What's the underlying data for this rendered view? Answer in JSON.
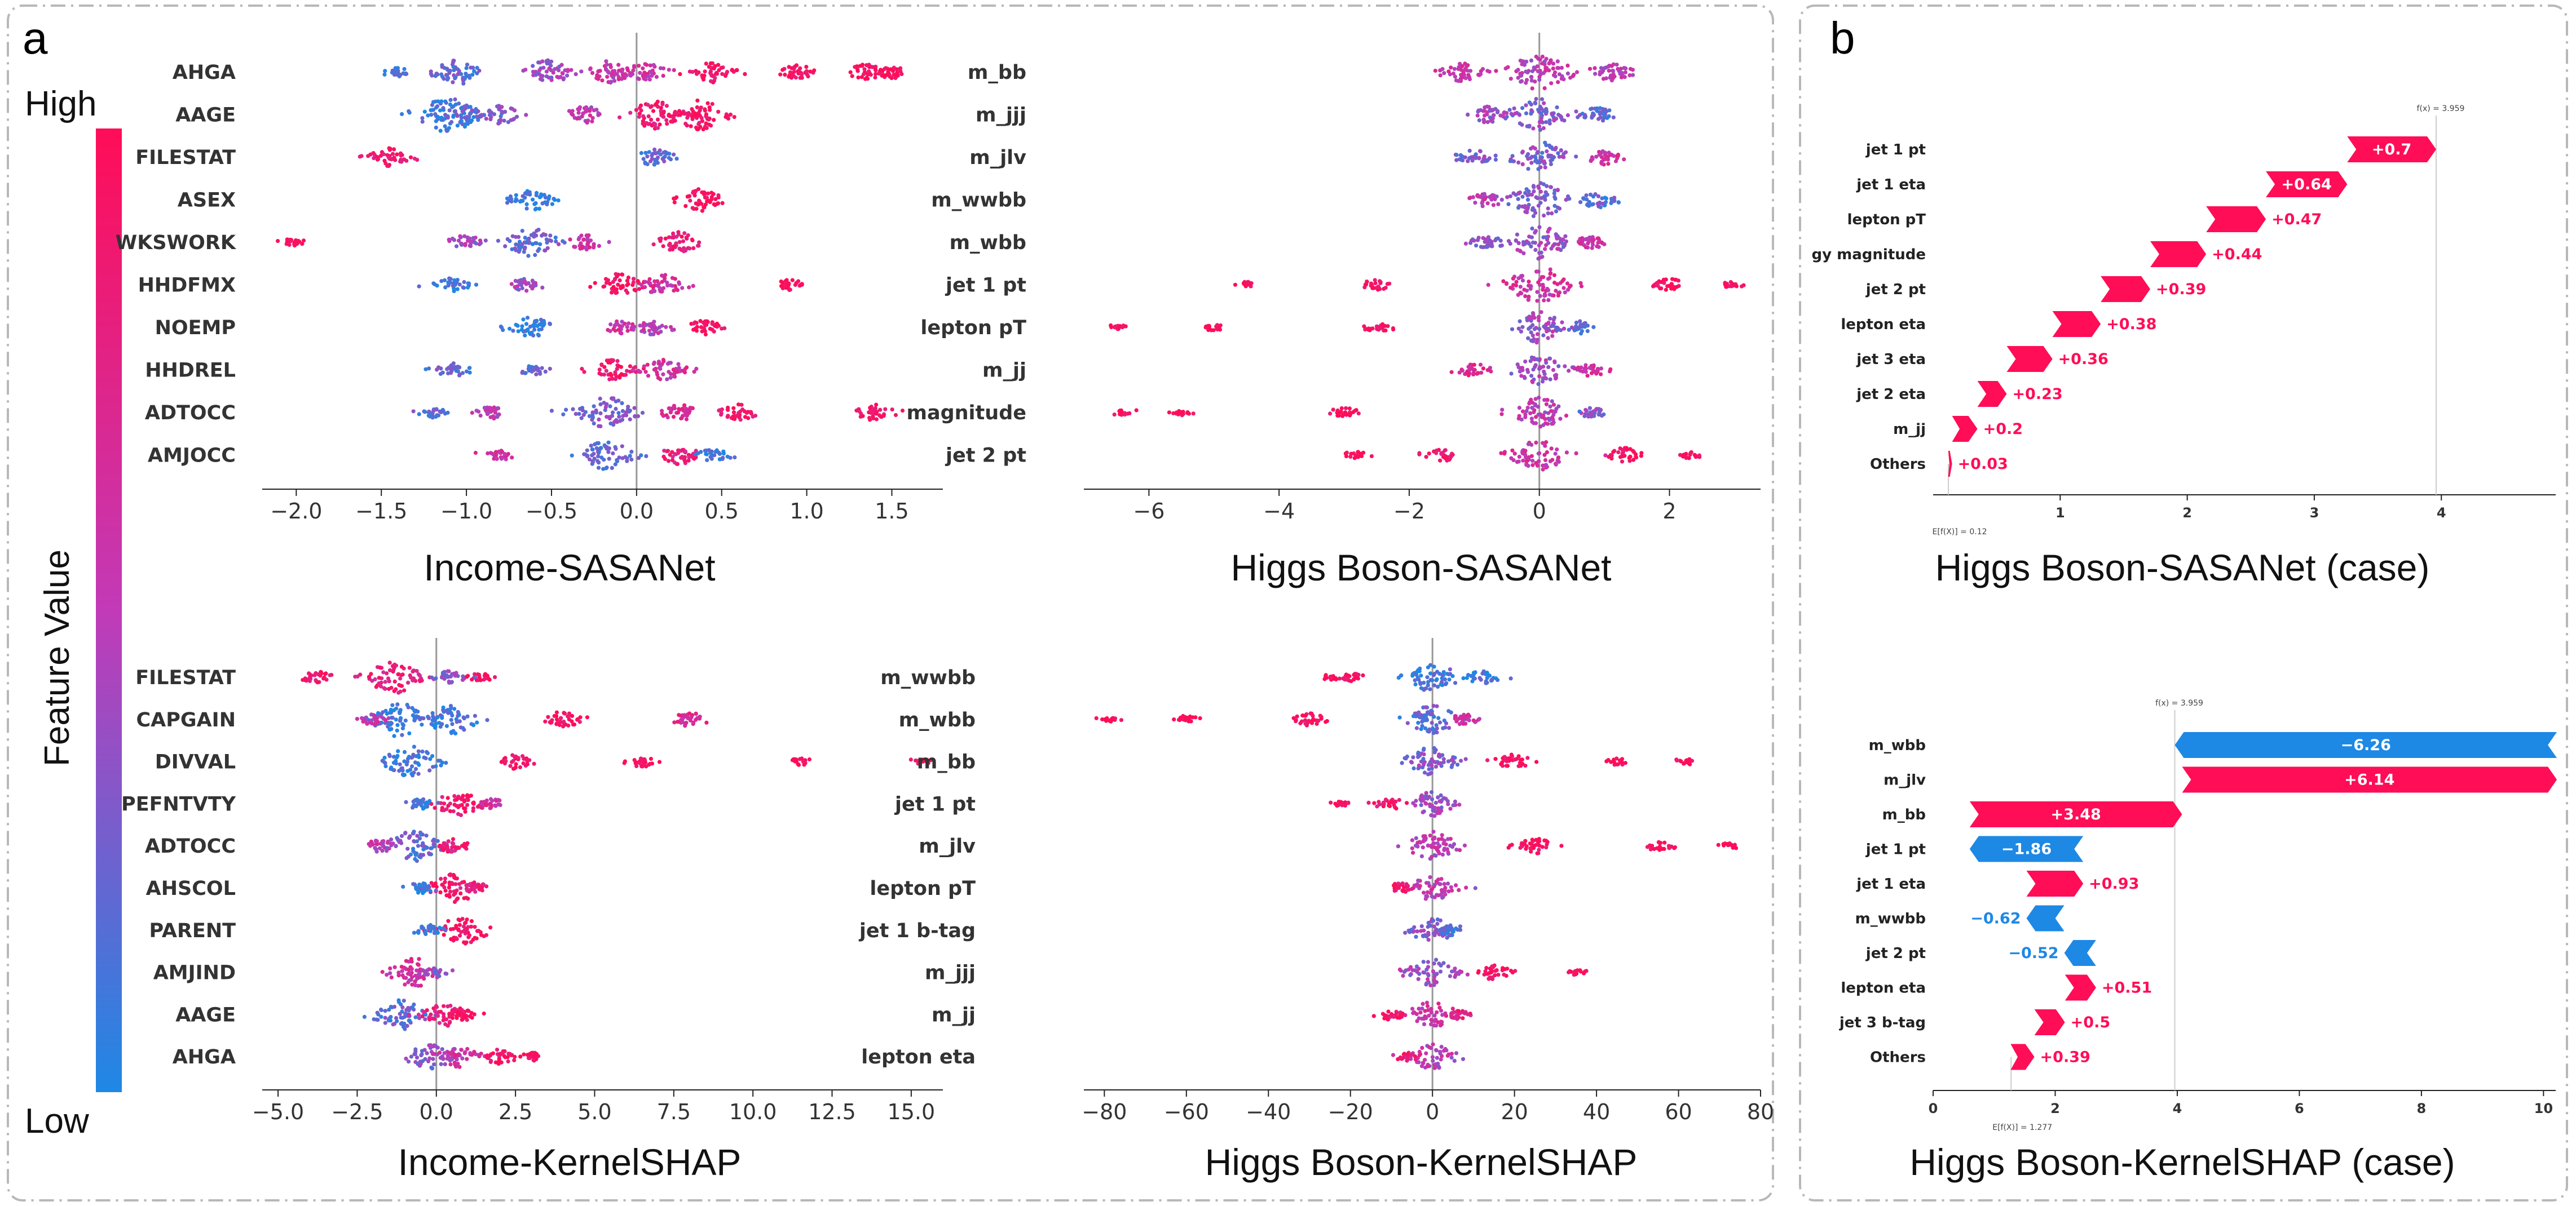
{
  "panel_labels": {
    "a": "a",
    "b": "b"
  },
  "colorbar": {
    "high": "High",
    "low": "Low",
    "title": "Feature Value",
    "color_high": "#ff0d57",
    "color_low": "#1e88e5"
  },
  "colors": {
    "positive": "#ff0d57",
    "negative": "#1e88e5"
  },
  "chart_data": [
    {
      "id": "income_sasanet",
      "type": "beeswarm",
      "title": "Income-SASANet",
      "features": [
        "AHGA",
        "AAGE",
        "FILESTAT",
        "ASEX",
        "WKSWORK",
        "HHDFMX",
        "NOEMP",
        "HHDREL",
        "ADTOCC",
        "AMJOCC"
      ],
      "xlim": [
        -2.2,
        1.8
      ],
      "xticks": [
        -2.0,
        -1.5,
        -1.0,
        -0.5,
        0.0,
        0.5,
        1.0,
        1.5
      ],
      "xtick_labels": [
        "−2.0",
        "−1.5",
        "−1.0",
        "−0.5",
        "0.0",
        "0.5",
        "1.0",
        "1.5"
      ],
      "clusters": [
        [
          [
            -1.05,
            1.0,
            0.2
          ],
          [
            -0.52,
            1.0,
            0.4
          ],
          [
            -0.16,
            0.9,
            0.55
          ],
          [
            0.05,
            0.7,
            0.6
          ],
          [
            0.45,
            0.8,
            0.9
          ],
          [
            0.95,
            0.5,
            0.95
          ],
          [
            1.35,
            0.6,
            1.0
          ],
          [
            1.5,
            0.4,
            1.0
          ],
          [
            -1.4,
            0.2,
            0.1
          ]
        ],
        [
          [
            -1.1,
            1.6,
            0.1
          ],
          [
            -0.8,
            0.7,
            0.3
          ],
          [
            -0.3,
            0.6,
            0.5
          ],
          [
            0.1,
            1.2,
            0.85
          ],
          [
            0.38,
            1.3,
            0.95
          ],
          [
            -1.0,
            0.6,
            0.2
          ]
        ],
        [
          [
            -1.45,
            0.8,
            0.9
          ],
          [
            0.1,
            0.6,
            0.2
          ]
        ],
        [
          [
            -0.62,
            0.9,
            0.05
          ],
          [
            0.38,
            0.9,
            1.0
          ]
        ],
        [
          [
            -0.62,
            1.2,
            0.2
          ],
          [
            -1.0,
            0.5,
            0.4
          ],
          [
            -0.3,
            0.5,
            0.6
          ],
          [
            0.25,
            0.8,
            0.85
          ],
          [
            -2.0,
            0.2,
            1.0
          ]
        ],
        [
          [
            -1.08,
            0.5,
            0.1
          ],
          [
            -0.65,
            0.4,
            0.4
          ],
          [
            -0.1,
            0.9,
            0.95
          ],
          [
            0.15,
            0.8,
            0.6
          ],
          [
            0.9,
            0.3,
            1.0
          ]
        ],
        [
          [
            -0.62,
            0.8,
            0.05
          ],
          [
            -0.1,
            0.4,
            0.6
          ],
          [
            0.1,
            0.5,
            0.5
          ],
          [
            0.4,
            0.5,
            0.95
          ]
        ],
        [
          [
            -1.08,
            0.5,
            0.2
          ],
          [
            -0.6,
            0.3,
            0.2
          ],
          [
            -0.15,
            0.8,
            0.9
          ],
          [
            0.15,
            0.9,
            0.6
          ]
        ],
        [
          [
            -1.2,
            0.3,
            0.2
          ],
          [
            -0.85,
            0.4,
            0.5
          ],
          [
            -0.18,
            1.4,
            0.3
          ],
          [
            0.25,
            0.6,
            0.7
          ],
          [
            0.6,
            0.6,
            0.9
          ],
          [
            1.4,
            0.6,
            0.95
          ]
        ],
        [
          [
            -0.8,
            0.3,
            0.6
          ],
          [
            -0.18,
            1.2,
            0.2
          ],
          [
            0.25,
            0.7,
            0.8
          ],
          [
            0.45,
            0.4,
            0.1
          ]
        ]
      ]
    },
    {
      "id": "higgs_sasanet",
      "type": "beeswarm",
      "title": "Higgs Boson-SASANet",
      "features": [
        "m_bb",
        "m_jjj",
        "m_jlv",
        "m_wwbb",
        "m_wbb",
        "jet 1 pt",
        "lepton pT",
        "m_jj",
        "magnitude",
        "jet 2 pt"
      ],
      "xlim": [
        -7.0,
        3.4
      ],
      "xticks": [
        -6,
        -4,
        -2,
        0,
        2
      ],
      "xtick_labels": [
        "−6",
        "−4",
        "−2",
        "0",
        "2"
      ],
      "clusters": [
        [
          [
            0,
            1.6,
            0.5
          ],
          [
            -1.2,
            0.7,
            0.6
          ],
          [
            1.1,
            0.7,
            0.5
          ]
        ],
        [
          [
            0,
            1.4,
            0.3
          ],
          [
            -0.8,
            0.6,
            0.4
          ],
          [
            0.9,
            0.5,
            0.2
          ]
        ],
        [
          [
            0,
            1.3,
            0.3
          ],
          [
            -1.0,
            0.5,
            0.3
          ],
          [
            1.0,
            0.5,
            0.6
          ]
        ],
        [
          [
            0,
            1.5,
            0.3
          ],
          [
            -0.8,
            0.5,
            0.5
          ],
          [
            0.9,
            0.6,
            0.2
          ]
        ],
        [
          [
            0,
            1.4,
            0.4
          ],
          [
            -0.8,
            0.5,
            0.3
          ],
          [
            0.8,
            0.4,
            0.6
          ]
        ],
        [
          [
            0,
            1.6,
            0.6
          ],
          [
            -2.5,
            0.3,
            0.95
          ],
          [
            2.0,
            0.4,
            0.95
          ],
          [
            -4.5,
            0.08,
            1.0
          ],
          [
            3.0,
            0.1,
            1.0
          ]
        ],
        [
          [
            0,
            1.3,
            0.4
          ],
          [
            -2.5,
            0.3,
            0.95
          ],
          [
            -5.0,
            0.08,
            1.0
          ],
          [
            -6.5,
            0.05,
            1.0
          ],
          [
            0.6,
            0.4,
            0.2
          ]
        ],
        [
          [
            0,
            1.2,
            0.4
          ],
          [
            -1.0,
            0.4,
            0.7
          ],
          [
            0.8,
            0.4,
            0.6
          ]
        ],
        [
          [
            0,
            1.3,
            0.5
          ],
          [
            -3.0,
            0.25,
            1.0
          ],
          [
            -5.5,
            0.05,
            1.0
          ],
          [
            -6.4,
            0.05,
            1.0
          ],
          [
            0.8,
            0.3,
            0.3
          ]
        ],
        [
          [
            0,
            1.3,
            0.6
          ],
          [
            -1.5,
            0.4,
            0.9
          ],
          [
            1.3,
            0.5,
            0.95
          ],
          [
            -2.8,
            0.1,
            1.0
          ],
          [
            2.3,
            0.08,
            1.0
          ]
        ]
      ]
    },
    {
      "id": "income_kernelshap",
      "type": "beeswarm",
      "title": "Income-KernelSHAP",
      "features": [
        "FILESTAT",
        "CAPGAIN",
        "DIVVAL",
        "PEFNTVTY",
        "ADTOCC",
        "AHSCOL",
        "PARENT",
        "AMJIND",
        "AAGE",
        "AHGA"
      ],
      "xlim": [
        -5.5,
        16.0
      ],
      "xticks": [
        -5.0,
        -2.5,
        0.0,
        2.5,
        5.0,
        7.5,
        10.0,
        12.5,
        15.0
      ],
      "xtick_labels": [
        "−5.0",
        "−2.5",
        "0.0",
        "2.5",
        "5.0",
        "7.5",
        "10.0",
        "12.5",
        "15.0"
      ],
      "clusters": [
        [
          [
            -1.4,
            1.4,
            0.8
          ],
          [
            -3.8,
            0.4,
            0.9
          ],
          [
            0.5,
            0.5,
            0.3
          ],
          [
            1.4,
            0.2,
            1.0
          ]
        ],
        [
          [
            -1.2,
            1.5,
            0.1
          ],
          [
            0.5,
            1.2,
            0.1
          ],
          [
            4.0,
            0.6,
            0.95
          ],
          [
            8.0,
            0.5,
            0.7
          ],
          [
            -2.0,
            0.3,
            0.5
          ]
        ],
        [
          [
            -0.8,
            1.3,
            0.1
          ],
          [
            2.5,
            0.5,
            0.95
          ],
          [
            6.5,
            0.3,
            1.0
          ],
          [
            11.5,
            0.1,
            1.0
          ],
          [
            15.3,
            0.05,
            1.0
          ]
        ],
        [
          [
            0.7,
            1.0,
            0.9
          ],
          [
            -0.5,
            0.3,
            0.1
          ],
          [
            1.7,
            0.3,
            0.6
          ]
        ],
        [
          [
            -0.7,
            1.3,
            0.2
          ],
          [
            -1.8,
            0.4,
            0.5
          ],
          [
            0.5,
            0.5,
            0.8
          ]
        ],
        [
          [
            0.6,
            1.2,
            0.95
          ],
          [
            -0.5,
            0.3,
            0.1
          ],
          [
            1.2,
            0.3,
            0.8
          ]
        ],
        [
          [
            0.8,
            1.2,
            0.95
          ],
          [
            -0.2,
            0.3,
            0.1
          ]
        ],
        [
          [
            -0.7,
            1.2,
            0.6
          ],
          [
            0.0,
            0.2,
            0.3
          ]
        ],
        [
          [
            -1.1,
            1.3,
            0.2
          ],
          [
            0.3,
            0.9,
            0.8
          ],
          [
            0.8,
            0.4,
            0.95
          ]
        ],
        [
          [
            -0.2,
            1.0,
            0.3
          ],
          [
            0.7,
            0.8,
            0.6
          ],
          [
            2.0,
            0.5,
            0.95
          ],
          [
            3.0,
            0.2,
            1.0
          ]
        ]
      ]
    },
    {
      "id": "higgs_kernelshap",
      "type": "beeswarm",
      "title": "Higgs Boson-KernelSHAP",
      "features": [
        "m_wwbb",
        "m_wbb",
        "m_bb",
        "jet 1 pt",
        "m_jlv",
        "lepton pT",
        "jet 1 b-tag",
        "m_jjj",
        "m_jj",
        "lepton eta"
      ],
      "xlim": [
        -85,
        80
      ],
      "xticks": [
        -80,
        -60,
        -40,
        -20,
        0,
        20,
        40,
        60,
        80
      ],
      "xtick_labels": [
        "−80",
        "−60",
        "−40",
        "−20",
        "0",
        "20",
        "40",
        "60",
        "80"
      ],
      "clusters": [
        [
          [
            0,
            1.2,
            0.1
          ],
          [
            -20,
            0.2,
            0.95
          ],
          [
            12,
            0.4,
            0.1
          ],
          [
            -25,
            0.05,
            1.0
          ]
        ],
        [
          [
            0,
            1.2,
            0.2
          ],
          [
            -30,
            0.4,
            0.95
          ],
          [
            -60,
            0.15,
            1.0
          ],
          [
            -78,
            0.05,
            1.0
          ],
          [
            8,
            0.3,
            0.6
          ]
        ],
        [
          [
            0,
            1.3,
            0.3
          ],
          [
            20,
            0.5,
            0.95
          ],
          [
            45,
            0.1,
            1.0
          ],
          [
            62,
            0.05,
            1.0
          ]
        ],
        [
          [
            0,
            1.0,
            0.4
          ],
          [
            -10,
            0.3,
            0.9
          ],
          [
            -23,
            0.05,
            1.0
          ]
        ],
        [
          [
            0,
            1.2,
            0.5
          ],
          [
            25,
            0.6,
            0.95
          ],
          [
            55,
            0.2,
            1.0
          ],
          [
            72,
            0.05,
            1.0
          ]
        ],
        [
          [
            0,
            1.0,
            0.5
          ],
          [
            -8,
            0.3,
            0.9
          ]
        ],
        [
          [
            0,
            1.0,
            0.3
          ],
          [
            5,
            0.3,
            0.1
          ]
        ],
        [
          [
            0,
            1.1,
            0.4
          ],
          [
            15,
            0.5,
            0.95
          ],
          [
            35,
            0.05,
            1.0
          ]
        ],
        [
          [
            0,
            1.1,
            0.6
          ],
          [
            -10,
            0.3,
            0.95
          ],
          [
            6,
            0.2,
            0.8
          ]
        ],
        [
          [
            0,
            1.0,
            0.5
          ],
          [
            -6,
            0.2,
            0.9
          ]
        ]
      ]
    },
    {
      "id": "higgs_sasanet_case",
      "type": "waterfall",
      "title": "Higgs Boson-SASANet (case)",
      "features": [
        "jet 1 pt",
        "jet 1 eta",
        "lepton pT",
        "gy magnitude",
        "jet 2 pt",
        "lepton eta",
        "jet 3 eta",
        "jet 2 eta",
        "m_jj",
        "Others"
      ],
      "values": [
        0.7,
        0.64,
        0.47,
        0.44,
        0.39,
        0.38,
        0.36,
        0.23,
        0.2,
        0.03
      ],
      "value_labels": [
        "+0.7",
        "+0.64",
        "+0.47",
        "+0.44",
        "+0.39",
        "+0.38",
        "+0.36",
        "+0.23",
        "+0.2",
        "+0.03"
      ],
      "base": 0.12,
      "fx": 3.959,
      "fx_label": "f(x) = 3.959",
      "efx_label": "E[f(X)] = 0.12",
      "xlim": [
        0,
        4.9
      ],
      "xticks": [
        1,
        2,
        3,
        4
      ],
      "xtick_labels": [
        "1",
        "2",
        "3",
        "4"
      ]
    },
    {
      "id": "higgs_kernelshap_case",
      "type": "waterfall",
      "title": "Higgs Boson-KernelSHAP (case)",
      "features": [
        "m_wbb",
        "m_jlv",
        "m_bb",
        "jet 1 pt",
        "jet 1 eta",
        "m_wwbb",
        "jet 2 pt",
        "lepton eta",
        "jet 3 b-tag",
        "Others"
      ],
      "values": [
        -6.26,
        6.14,
        3.48,
        -1.86,
        0.93,
        -0.62,
        -0.52,
        0.51,
        0.5,
        0.39
      ],
      "value_labels": [
        "−6.26",
        "+6.14",
        "+3.48",
        "−1.86",
        "+0.93",
        "−0.62",
        "−0.52",
        "+0.51",
        "+0.5",
        "+0.39"
      ],
      "base": 1.277,
      "fx": 3.959,
      "fx_label": "f(x) = 3.959",
      "efx_label": "E[f(X)] = 1.277",
      "xlim": [
        0,
        10.2
      ],
      "xticks": [
        0,
        2,
        4,
        6,
        8,
        10
      ],
      "xtick_labels": [
        "0",
        "2",
        "4",
        "6",
        "8",
        "10"
      ]
    }
  ]
}
